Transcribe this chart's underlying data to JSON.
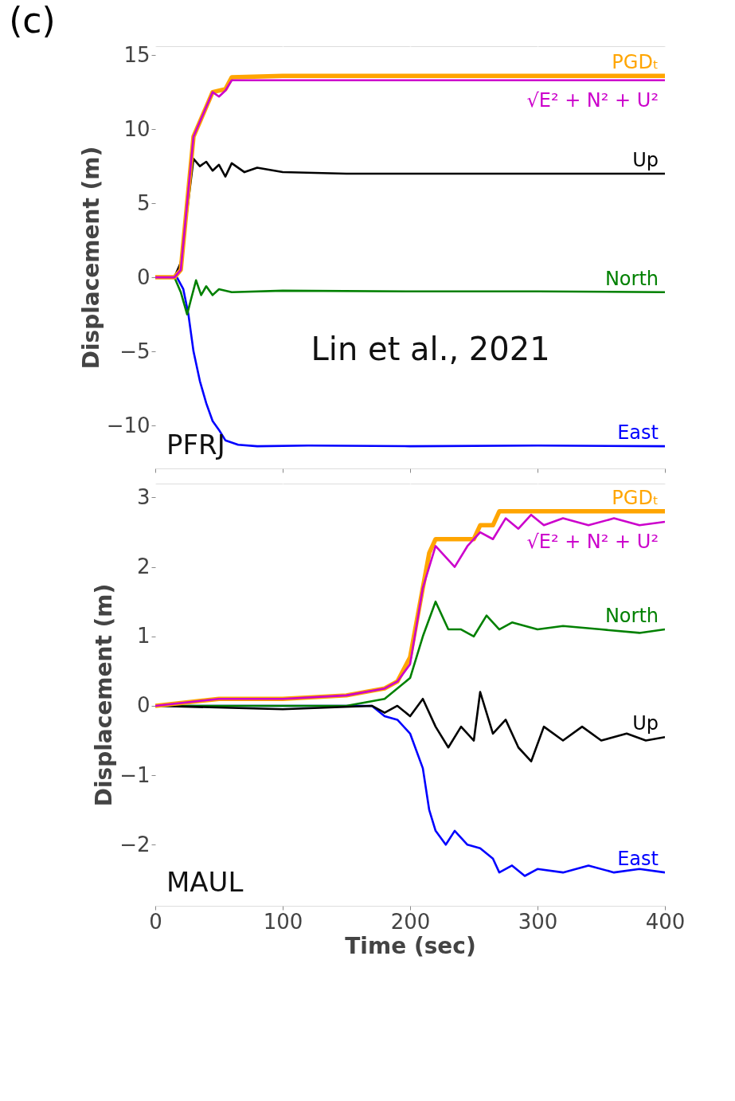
{
  "chart_data": [
    {
      "type": "line",
      "title": "(c)",
      "ylabel": "Displacement (m)",
      "xlim": [
        0,
        400
      ],
      "ylim": [
        -12.9,
        15.6
      ],
      "xticks": [
        0,
        100,
        200,
        300,
        400
      ],
      "yticks": [
        -10,
        -5,
        0,
        5,
        10,
        15
      ],
      "grid": true,
      "legend": false,
      "tick_labels": "y",
      "annotations": [
        "PFRJ",
        "Lin et al., 2021"
      ],
      "series": [
        {
          "name": "East",
          "color": "#0000ff",
          "x": [
            0,
            17,
            22,
            26,
            30,
            35,
            40,
            45,
            50,
            55,
            65,
            80,
            120,
            200,
            300,
            400
          ],
          "values": [
            0,
            0,
            -0.8,
            -2.5,
            -5,
            -7,
            -8.5,
            -9.7,
            -10.3,
            -11,
            -11.3,
            -11.4,
            -11.35,
            -11.4,
            -11.35,
            -11.4
          ]
        },
        {
          "name": "North",
          "color": "#008000",
          "x": [
            0,
            15,
            20,
            25,
            28,
            32,
            36,
            40,
            45,
            50,
            60,
            100,
            200,
            300,
            400
          ],
          "values": [
            0,
            0,
            -1,
            -2.5,
            -1.5,
            -0.2,
            -1.2,
            -0.6,
            -1.2,
            -0.8,
            -1.0,
            -0.9,
            -0.95,
            -0.95,
            -1.0
          ]
        },
        {
          "name": "Up",
          "color": "#000000",
          "x": [
            0,
            15,
            20,
            30,
            35,
            40,
            45,
            50,
            55,
            60,
            70,
            80,
            100,
            150,
            200,
            300,
            400
          ],
          "values": [
            0,
            0,
            1,
            8,
            7.5,
            7.8,
            7.2,
            7.6,
            6.8,
            7.7,
            7.1,
            7.4,
            7.1,
            7.0,
            7.0,
            7.0,
            7.0
          ]
        },
        {
          "name": "√E² + N² + U²",
          "color": "#cc00cc",
          "x": [
            0,
            15,
            20,
            25,
            30,
            35,
            40,
            45,
            50,
            55,
            60,
            100,
            200,
            300,
            400
          ],
          "values": [
            0,
            0,
            0.5,
            5,
            9.5,
            10.5,
            11.5,
            12.5,
            12.2,
            12.6,
            13.3,
            13.3,
            13.3,
            13.3,
            13.3
          ]
        },
        {
          "name": "PGDₜ",
          "color": "#ffa500",
          "x": [
            0,
            15,
            20,
            25,
            30,
            35,
            40,
            45,
            55,
            60,
            100,
            200,
            300,
            400
          ],
          "values": [
            0,
            0,
            0.5,
            5,
            9.5,
            10.5,
            11.5,
            12.5,
            12.7,
            13.5,
            13.6,
            13.6,
            13.6,
            13.6
          ]
        }
      ]
    },
    {
      "type": "line",
      "xlabel": "Time (sec)",
      "ylabel": "Displacement (m)",
      "xlim": [
        0,
        400
      ],
      "ylim": [
        -2.88,
        3.2
      ],
      "xticks": [
        0,
        100,
        200,
        300,
        400
      ],
      "yticks": [
        -2,
        -1,
        0,
        1,
        2,
        3
      ],
      "grid": true,
      "legend": false,
      "annotations": [
        "MAUL"
      ],
      "series": [
        {
          "name": "East",
          "color": "#0000ff",
          "x": [
            0,
            100,
            170,
            180,
            190,
            200,
            210,
            215,
            220,
            228,
            235,
            245,
            255,
            265,
            270,
            280,
            290,
            300,
            320,
            340,
            360,
            380,
            400
          ],
          "values": [
            0,
            0,
            0,
            -0.15,
            -0.2,
            -0.4,
            -0.9,
            -1.5,
            -1.8,
            -2.0,
            -1.8,
            -2.0,
            -2.05,
            -2.2,
            -2.4,
            -2.3,
            -2.45,
            -2.35,
            -2.4,
            -2.3,
            -2.4,
            -2.35,
            -2.4
          ]
        },
        {
          "name": "North",
          "color": "#008000",
          "x": [
            0,
            100,
            150,
            180,
            200,
            210,
            220,
            230,
            240,
            250,
            260,
            270,
            280,
            300,
            320,
            350,
            380,
            400
          ],
          "values": [
            0,
            0,
            0,
            0.1,
            0.4,
            1.0,
            1.5,
            1.1,
            1.1,
            1.0,
            1.3,
            1.1,
            1.2,
            1.1,
            1.15,
            1.1,
            1.05,
            1.1
          ]
        },
        {
          "name": "Up",
          "color": "#000000",
          "x": [
            0,
            100,
            170,
            180,
            190,
            200,
            210,
            220,
            230,
            240,
            250,
            255,
            265,
            275,
            285,
            295,
            305,
            320,
            335,
            350,
            370,
            385,
            400
          ],
          "values": [
            0,
            -0.05,
            0,
            -0.1,
            0,
            -0.15,
            0.1,
            -0.3,
            -0.6,
            -0.3,
            -0.5,
            0.2,
            -0.4,
            -0.2,
            -0.6,
            -0.8,
            -0.3,
            -0.5,
            -0.3,
            -0.5,
            -0.4,
            -0.5,
            -0.45
          ]
        },
        {
          "name": "√E² + N² + U²",
          "color": "#cc00cc",
          "x": [
            0,
            50,
            100,
            150,
            180,
            190,
            200,
            210,
            220,
            225,
            235,
            245,
            255,
            265,
            275,
            285,
            295,
            305,
            320,
            340,
            360,
            380,
            400
          ],
          "values": [
            0,
            0.1,
            0.1,
            0.15,
            0.25,
            0.35,
            0.6,
            1.7,
            2.3,
            2.2,
            2.0,
            2.3,
            2.5,
            2.4,
            2.7,
            2.55,
            2.75,
            2.6,
            2.7,
            2.6,
            2.7,
            2.6,
            2.65
          ]
        },
        {
          "name": "PGDₜ",
          "color": "#ffa500",
          "x": [
            0,
            50,
            100,
            150,
            180,
            190,
            200,
            205,
            210,
            215,
            220,
            250,
            255,
            265,
            270,
            400
          ],
          "values": [
            0,
            0.1,
            0.1,
            0.15,
            0.25,
            0.35,
            0.7,
            1.2,
            1.7,
            2.2,
            2.4,
            2.4,
            2.6,
            2.6,
            2.8,
            2.8
          ]
        }
      ]
    }
  ]
}
